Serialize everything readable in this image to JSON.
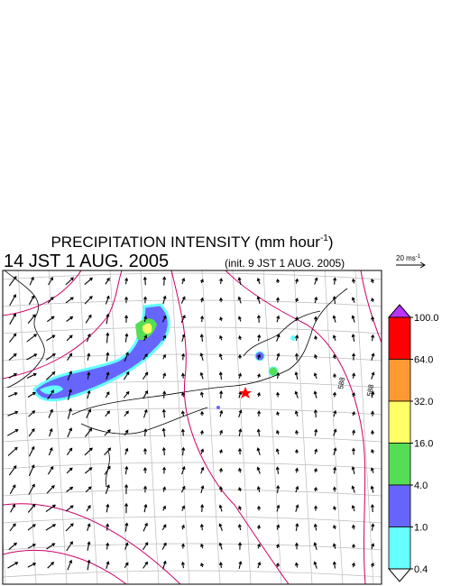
{
  "header": {
    "title": {
      "text": "PRECIPITATION INTENSITY (mm hour",
      "exponent": "-1",
      "close": ")"
    },
    "valid_time": "14 JST 1 AUG. 2005",
    "init_time": "(init. 9 JST 1 AUG. 2005)"
  },
  "wind_legend": {
    "text": "20 ms",
    "exponent": "-1"
  },
  "colorbar": {
    "ticks": [
      {
        "value": 100,
        "label": "100.0"
      },
      {
        "value": 64,
        "label": "64.0"
      },
      {
        "value": 32,
        "label": "32.0"
      },
      {
        "value": 16,
        "label": "16.0"
      },
      {
        "value": 4,
        "label": "4.0"
      },
      {
        "value": 1,
        "label": "1.0"
      },
      {
        "value": 0.4,
        "label": "0.4"
      }
    ],
    "colors": [
      "#ff0000",
      "#ff9933",
      "#ffff66",
      "#55dd55",
      "#6666ff",
      "#66ffff"
    ],
    "over_color": "#bb33ff",
    "under_color": "#ffffff"
  },
  "contour_labels": [
    "588",
    "588"
  ]
}
